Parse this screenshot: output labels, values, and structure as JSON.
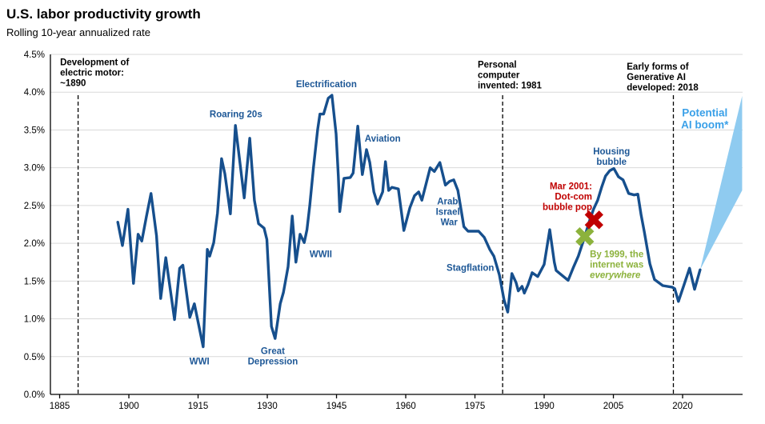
{
  "chart_data": {
    "type": "line",
    "title": "U.S. labor productivity growth",
    "subtitle": "Rolling 10-year annualized rate",
    "colors": {
      "line": "#164f8d",
      "label_blue": "#1d5796",
      "ai_blue": "#3aa0e8",
      "wedge": "#8fcbf0",
      "red": "#c00000",
      "green": "#8cb23c",
      "grid": "#d9d9d9",
      "axis": "#000000"
    },
    "y_axis": {
      "min": 0,
      "max": 4.5,
      "step": 0.5,
      "tick_labels": [
        "0.0%",
        "0.5%",
        "1.0%",
        "1.5%",
        "2.0%",
        "2.5%",
        "3.0%",
        "3.5%",
        "4.0%",
        "4.5%"
      ]
    },
    "x_axis": {
      "min": 1883,
      "max": 2033,
      "ticks": [
        1885,
        1900,
        1915,
        1930,
        1945,
        1960,
        1975,
        1990,
        2005,
        2020
      ]
    },
    "events": [
      {
        "id": "electric-motor-dashed-line",
        "year": 1889
      },
      {
        "id": "personal-computer-dashed-line",
        "year": 1981
      },
      {
        "id": "generative-ai-dashed-line",
        "year": 2018
      }
    ],
    "series": [
      {
        "name": "Rolling 10-year annualized labor productivity growth",
        "points": [
          [
            1897.6,
            2.28
          ],
          [
            1898.6,
            1.97
          ],
          [
            1899.8,
            2.45
          ],
          [
            1901.0,
            1.47
          ],
          [
            1902.0,
            2.12
          ],
          [
            1902.8,
            2.03
          ],
          [
            1903.8,
            2.35
          ],
          [
            1904.8,
            2.66
          ],
          [
            1906.0,
            2.1
          ],
          [
            1906.9,
            1.27
          ],
          [
            1908.0,
            1.81
          ],
          [
            1909.9,
            0.99
          ],
          [
            1911.0,
            1.67
          ],
          [
            1911.7,
            1.71
          ],
          [
            1913.2,
            1.02
          ],
          [
            1914.2,
            1.2
          ],
          [
            1916.1,
            0.63
          ],
          [
            1917.0,
            1.92
          ],
          [
            1917.5,
            1.83
          ],
          [
            1918.4,
            2.01
          ],
          [
            1919.2,
            2.4
          ],
          [
            1920.1,
            3.12
          ],
          [
            1920.8,
            2.92
          ],
          [
            1922.0,
            2.39
          ],
          [
            1923.1,
            3.56
          ],
          [
            1925.0,
            2.6
          ],
          [
            1926.2,
            3.39
          ],
          [
            1927.2,
            2.57
          ],
          [
            1928.1,
            2.26
          ],
          [
            1929.3,
            2.2
          ],
          [
            1929.9,
            2.05
          ],
          [
            1930.9,
            0.9
          ],
          [
            1931.7,
            0.74
          ],
          [
            1932.8,
            1.2
          ],
          [
            1933.5,
            1.35
          ],
          [
            1934.5,
            1.69
          ],
          [
            1935.4,
            2.36
          ],
          [
            1936.2,
            1.75
          ],
          [
            1937.1,
            2.12
          ],
          [
            1938.0,
            2.01
          ],
          [
            1938.6,
            2.18
          ],
          [
            1939.2,
            2.5
          ],
          [
            1940.0,
            3.0
          ],
          [
            1940.9,
            3.5
          ],
          [
            1941.4,
            3.71
          ],
          [
            1942.2,
            3.71
          ],
          [
            1943.2,
            3.92
          ],
          [
            1944.0,
            3.96
          ],
          [
            1944.9,
            3.45
          ],
          [
            1945.4,
            2.89
          ],
          [
            1945.7,
            2.42
          ],
          [
            1946.6,
            2.86
          ],
          [
            1948.0,
            2.87
          ],
          [
            1948.6,
            2.93
          ],
          [
            1949.6,
            3.55
          ],
          [
            1950.6,
            2.91
          ],
          [
            1951.5,
            3.24
          ],
          [
            1952.2,
            3.07
          ],
          [
            1953.1,
            2.68
          ],
          [
            1953.9,
            2.52
          ],
          [
            1955.0,
            2.68
          ],
          [
            1955.6,
            3.08
          ],
          [
            1956.3,
            2.7
          ],
          [
            1957.0,
            2.74
          ],
          [
            1958.4,
            2.72
          ],
          [
            1959.6,
            2.17
          ],
          [
            1960.9,
            2.47
          ],
          [
            1961.9,
            2.63
          ],
          [
            1962.8,
            2.68
          ],
          [
            1963.5,
            2.57
          ],
          [
            1965.3,
            3.0
          ],
          [
            1966.2,
            2.95
          ],
          [
            1967.4,
            3.07
          ],
          [
            1968.6,
            2.77
          ],
          [
            1969.5,
            2.82
          ],
          [
            1970.4,
            2.84
          ],
          [
            1971.3,
            2.7
          ],
          [
            1972.6,
            2.22
          ],
          [
            1973.5,
            2.16
          ],
          [
            1975.8,
            2.16
          ],
          [
            1977.0,
            2.08
          ],
          [
            1978.2,
            1.92
          ],
          [
            1979.1,
            1.83
          ],
          [
            1980.3,
            1.58
          ],
          [
            1981.3,
            1.25
          ],
          [
            1982.1,
            1.09
          ],
          [
            1983.0,
            1.6
          ],
          [
            1983.9,
            1.48
          ],
          [
            1984.4,
            1.37
          ],
          [
            1985.2,
            1.43
          ],
          [
            1985.7,
            1.34
          ],
          [
            1986.5,
            1.45
          ],
          [
            1987.4,
            1.61
          ],
          [
            1988.6,
            1.56
          ],
          [
            1990.0,
            1.72
          ],
          [
            1991.2,
            2.18
          ],
          [
            1992.2,
            1.75
          ],
          [
            1992.6,
            1.64
          ],
          [
            1993.4,
            1.6
          ],
          [
            1995.2,
            1.51
          ],
          [
            1996.4,
            1.69
          ],
          [
            1997.4,
            1.83
          ],
          [
            1998.7,
            2.07
          ],
          [
            1999.9,
            2.31
          ],
          [
            2000.7,
            2.45
          ],
          [
            2001.6,
            2.57
          ],
          [
            2002.5,
            2.75
          ],
          [
            2003.3,
            2.89
          ],
          [
            2004.2,
            2.96
          ],
          [
            2005.1,
            2.99
          ],
          [
            2006.1,
            2.88
          ],
          [
            2007.1,
            2.84
          ],
          [
            2008.3,
            2.66
          ],
          [
            2009.5,
            2.64
          ],
          [
            2010.3,
            2.65
          ],
          [
            2011.0,
            2.38
          ],
          [
            2011.7,
            2.15
          ],
          [
            2012.9,
            1.73
          ],
          [
            2013.9,
            1.52
          ],
          [
            2015.7,
            1.44
          ],
          [
            2017.7,
            1.42
          ],
          [
            2018.3,
            1.4
          ],
          [
            2019.1,
            1.23
          ],
          [
            2020.3,
            1.45
          ],
          [
            2021.5,
            1.67
          ],
          [
            2022.6,
            1.39
          ],
          [
            2023.8,
            1.65
          ]
        ]
      }
    ],
    "projection": {
      "id": "potential-ai-boom-wedge",
      "name": "Potential AI boom",
      "points": [
        [
          2023.8,
          1.65
        ],
        [
          2032.9,
          3.95
        ],
        [
          2032.9,
          2.7
        ]
      ]
    },
    "markers": [
      {
        "id": "internet-everywhere-marker",
        "year": 1998.8,
        "value": 2.09,
        "color": "#8cb23c"
      },
      {
        "id": "dotcom-pop-marker",
        "year": 2000.8,
        "value": 2.31,
        "color": "#c00000"
      }
    ],
    "annotations": [
      {
        "id": "note-electric-motor",
        "lines": [
          "Development of",
          "electric motor:",
          "~1890"
        ],
        "x": 1885.1,
        "y": 4.46,
        "align": "left",
        "color": "#000000",
        "size": 11.5
      },
      {
        "id": "note-personal-computer",
        "lines": [
          "Personal",
          "computer",
          "invented: 1981"
        ],
        "x": 1975.6,
        "y": 4.43,
        "align": "left",
        "color": "#000000",
        "size": 11.5
      },
      {
        "id": "note-generative-ai",
        "lines": [
          "Early forms of",
          "Generative AI",
          "developed: 2018"
        ],
        "x": 2007.9,
        "y": 4.4,
        "align": "left",
        "color": "#000000",
        "size": 11.5
      },
      {
        "id": "note-potential-ai-boom",
        "lines": [
          "Potential",
          "AI boom*"
        ],
        "x": 2024.8,
        "y": 3.8,
        "align": "center",
        "color": "#3aa0e8",
        "size": 13.5
      },
      {
        "id": "note-electrification",
        "lines": [
          "Electrification"
        ],
        "x": 1942.8,
        "y": 4.17,
        "align": "center",
        "color": "#1d5796",
        "size": 11.5
      },
      {
        "id": "note-roaring-20s",
        "lines": [
          "Roaring 20s"
        ],
        "x": 1923.2,
        "y": 3.77,
        "align": "center",
        "color": "#1d5796",
        "size": 11.5
      },
      {
        "id": "note-aviation",
        "lines": [
          "Aviation"
        ],
        "x": 1955.0,
        "y": 3.45,
        "align": "center",
        "color": "#1d5796",
        "size": 11.5
      },
      {
        "id": "note-wwi",
        "lines": [
          "WWI"
        ],
        "x": 1915.3,
        "y": 0.5,
        "align": "center",
        "color": "#1d5796",
        "size": 11.5
      },
      {
        "id": "note-great-depression",
        "lines": [
          "Great",
          "Depression"
        ],
        "x": 1931.2,
        "y": 0.64,
        "align": "center",
        "color": "#1d5796",
        "size": 11.5
      },
      {
        "id": "note-wwii",
        "lines": [
          "WWII"
        ],
        "x": 1941.6,
        "y": 1.92,
        "align": "center",
        "color": "#1d5796",
        "size": 11.5
      },
      {
        "id": "note-arab-israeli-war",
        "lines": [
          "Arab-",
          "Israeli",
          "War"
        ],
        "x": 1969.4,
        "y": 2.62,
        "align": "center",
        "color": "#1d5796",
        "size": 11.5
      },
      {
        "id": "note-stagflation",
        "lines": [
          "Stagflation"
        ],
        "x": 1974.0,
        "y": 1.74,
        "align": "center",
        "color": "#1d5796",
        "size": 11.5
      },
      {
        "id": "note-dotcom-pop",
        "lines": [
          "Mar 2001:",
          "Dot-com",
          "bubble pop"
        ],
        "x": 2000.4,
        "y": 2.82,
        "align": "right",
        "color": "#c00000",
        "size": 11.5
      },
      {
        "id": "note-internet-everywhere",
        "lines": [
          "By 1999, the",
          "internet was",
          "everywhere"
        ],
        "x": 1999.9,
        "y": 1.92,
        "align": "left",
        "color": "#8cb23c",
        "size": 11.5,
        "italic_last": true
      },
      {
        "id": "note-housing-bubble",
        "lines": [
          "Housing",
          "bubble"
        ],
        "x": 2004.6,
        "y": 3.28,
        "align": "center",
        "color": "#1d5796",
        "size": 11.5
      }
    ]
  }
}
